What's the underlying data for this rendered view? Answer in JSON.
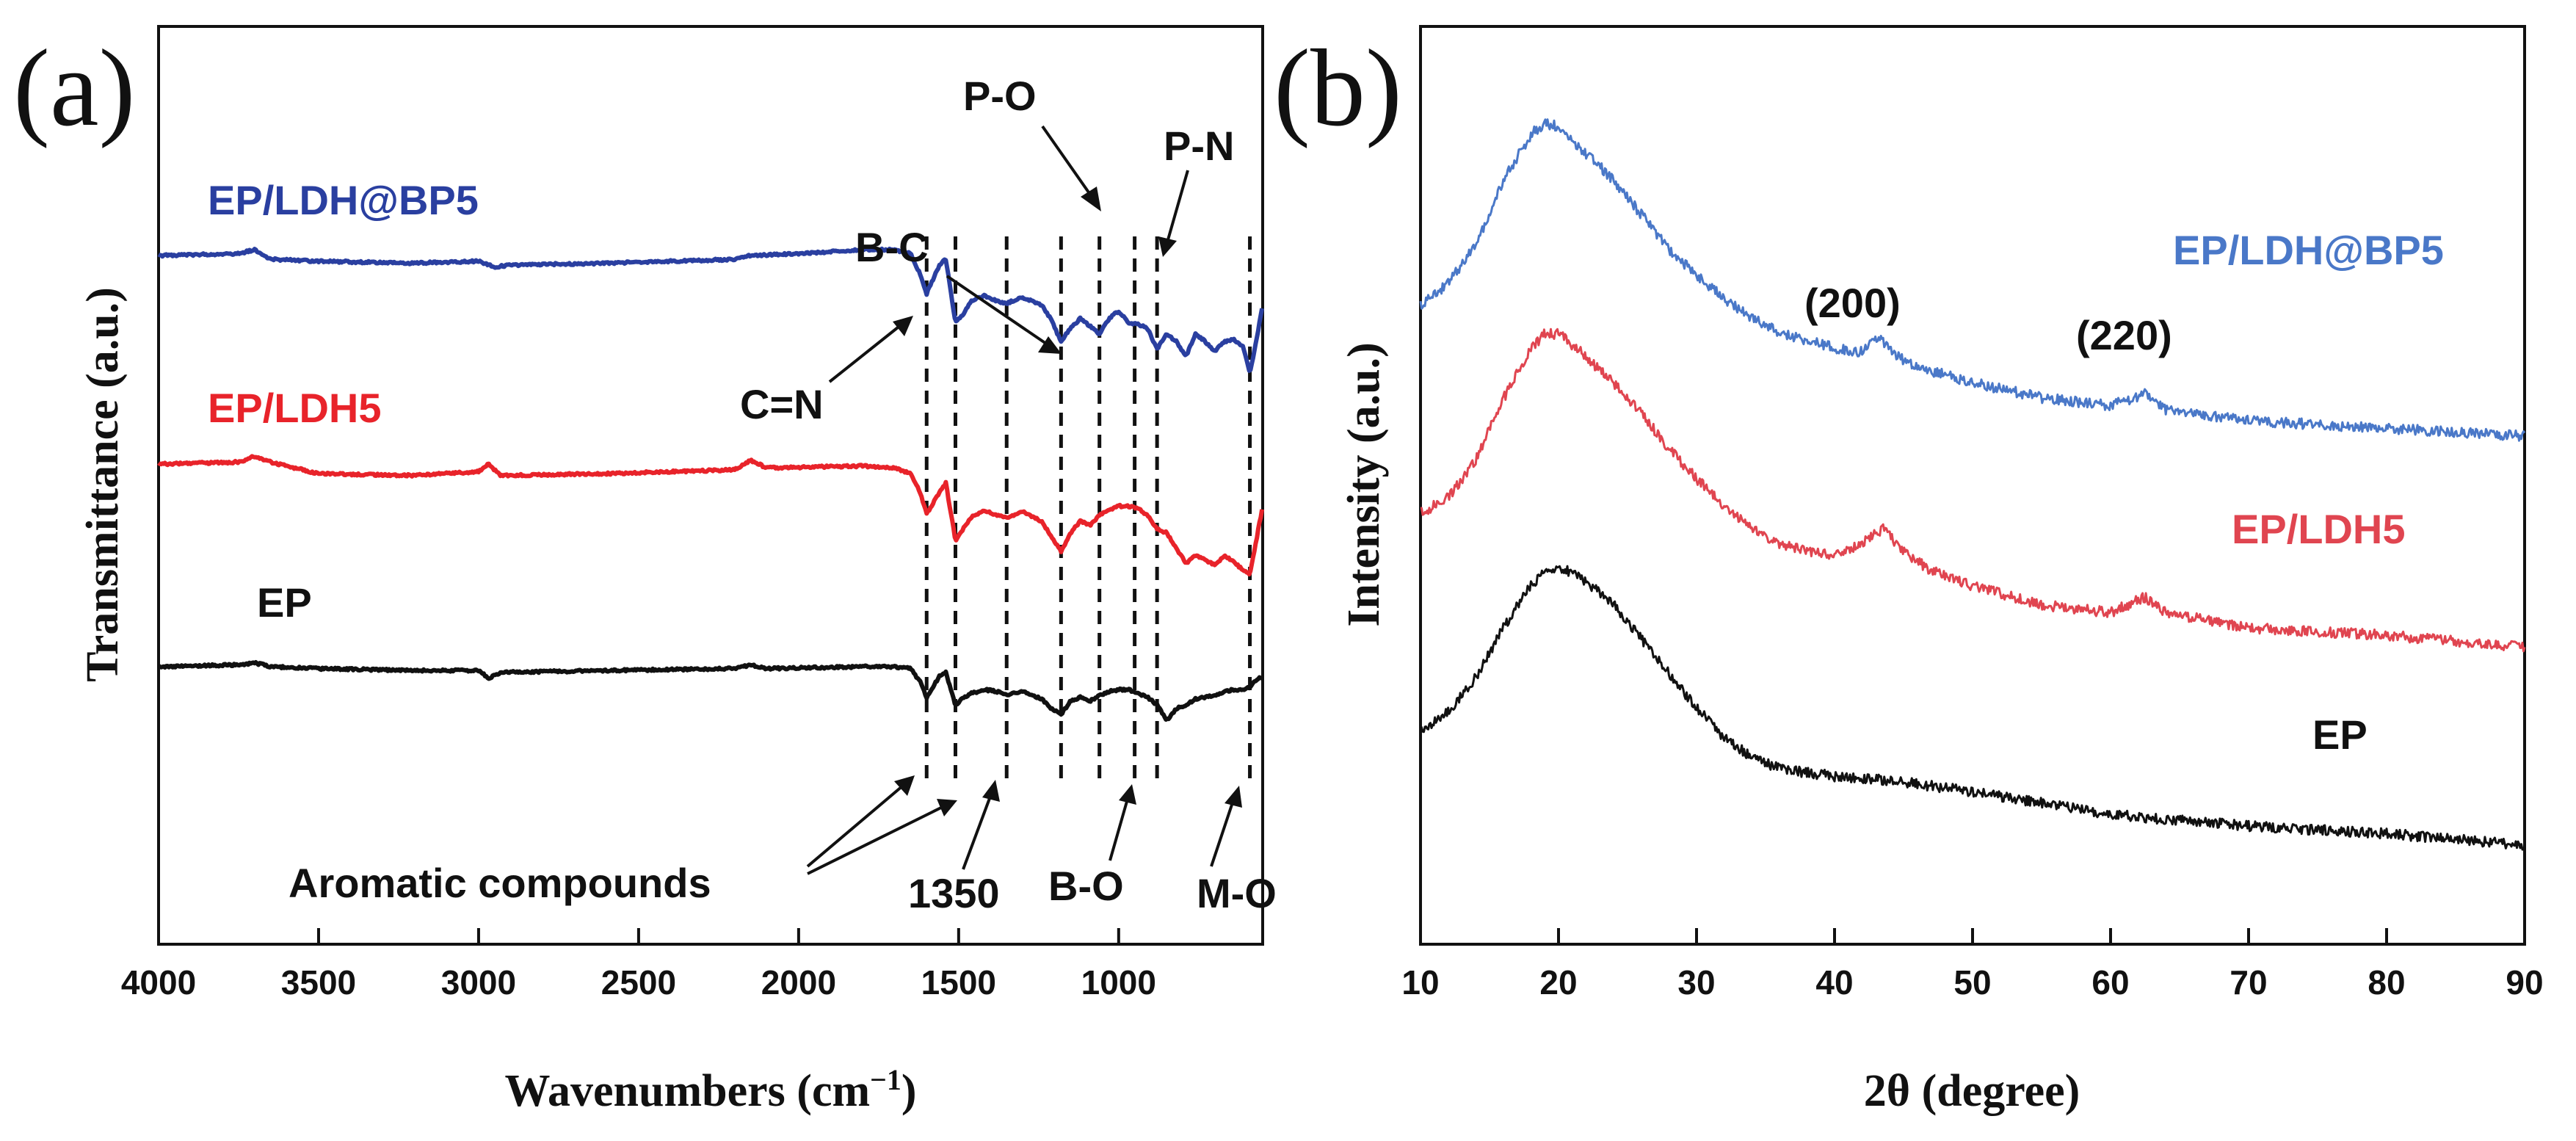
{
  "chart_data": [
    {
      "panel": "(a)",
      "type": "line",
      "xlabel": "Wavenumbers (cm",
      "xlabel_sup": "−1",
      "xlabel_close": ")",
      "ylabel": "Transmittance (a.u.)",
      "xlim": [
        4000,
        550
      ],
      "x_reversed": true,
      "xticks": [
        4000,
        3500,
        3000,
        2500,
        2000,
        1500,
        1000
      ],
      "y_units": "arbitrary (stacked, offset traces)",
      "series": [
        {
          "name": "EP/LDH@BP5",
          "color": "#2A3FA0",
          "offset": 2,
          "points": [
            [
              4000,
              0
            ],
            [
              3750,
              0.01
            ],
            [
              3700,
              0.03
            ],
            [
              3650,
              -0.02
            ],
            [
              3500,
              -0.03
            ],
            [
              3200,
              -0.04
            ],
            [
              3000,
              -0.03
            ],
            [
              2950,
              -0.06
            ],
            [
              2900,
              -0.05
            ],
            [
              2600,
              -0.04
            ],
            [
              2200,
              -0.02
            ],
            [
              2150,
              0
            ],
            [
              2000,
              0.01
            ],
            [
              1800,
              0.03
            ],
            [
              1700,
              0.03
            ],
            [
              1650,
              0.01
            ],
            [
              1620,
              -0.1
            ],
            [
              1600,
              -0.2
            ],
            [
              1560,
              -0.05
            ],
            [
              1540,
              -0.02
            ],
            [
              1510,
              -0.35
            ],
            [
              1490,
              -0.32
            ],
            [
              1460,
              -0.24
            ],
            [
              1420,
              -0.21
            ],
            [
              1380,
              -0.24
            ],
            [
              1350,
              -0.25
            ],
            [
              1300,
              -0.22
            ],
            [
              1240,
              -0.26
            ],
            [
              1210,
              -0.34
            ],
            [
              1180,
              -0.45
            ],
            [
              1150,
              -0.38
            ],
            [
              1120,
              -0.33
            ],
            [
              1090,
              -0.37
            ],
            [
              1060,
              -0.41
            ],
            [
              1030,
              -0.33
            ],
            [
              1000,
              -0.29
            ],
            [
              970,
              -0.35
            ],
            [
              940,
              -0.36
            ],
            [
              910,
              -0.38
            ],
            [
              880,
              -0.49
            ],
            [
              850,
              -0.41
            ],
            [
              820,
              -0.45
            ],
            [
              790,
              -0.53
            ],
            [
              760,
              -0.41
            ],
            [
              730,
              -0.45
            ],
            [
              700,
              -0.5
            ],
            [
              670,
              -0.45
            ],
            [
              640,
              -0.44
            ],
            [
              610,
              -0.48
            ],
            [
              590,
              -0.62
            ],
            [
              570,
              -0.45
            ],
            [
              550,
              -0.26
            ]
          ]
        },
        {
          "name": "EP/LDH5",
          "color": "#E8232A",
          "offset": 1,
          "points": [
            [
              4000,
              0
            ],
            [
              3750,
              0.01
            ],
            [
              3700,
              0.04
            ],
            [
              3650,
              0.01
            ],
            [
              3500,
              -0.05
            ],
            [
              3200,
              -0.06
            ],
            [
              3000,
              -0.04
            ],
            [
              2970,
              0
            ],
            [
              2930,
              -0.06
            ],
            [
              2600,
              -0.05
            ],
            [
              2200,
              -0.03
            ],
            [
              2150,
              0.02
            ],
            [
              2100,
              -0.02
            ],
            [
              1800,
              -0.01
            ],
            [
              1700,
              -0.02
            ],
            [
              1650,
              -0.05
            ],
            [
              1620,
              -0.15
            ],
            [
              1600,
              -0.26
            ],
            [
              1560,
              -0.15
            ],
            [
              1540,
              -0.1
            ],
            [
              1510,
              -0.4
            ],
            [
              1490,
              -0.35
            ],
            [
              1460,
              -0.28
            ],
            [
              1420,
              -0.24
            ],
            [
              1380,
              -0.27
            ],
            [
              1350,
              -0.28
            ],
            [
              1300,
              -0.25
            ],
            [
              1240,
              -0.3
            ],
            [
              1210,
              -0.38
            ],
            [
              1180,
              -0.46
            ],
            [
              1150,
              -0.36
            ],
            [
              1120,
              -0.3
            ],
            [
              1090,
              -0.32
            ],
            [
              1060,
              -0.27
            ],
            [
              1030,
              -0.24
            ],
            [
              1000,
              -0.22
            ],
            [
              970,
              -0.22
            ],
            [
              940,
              -0.23
            ],
            [
              910,
              -0.27
            ],
            [
              880,
              -0.34
            ],
            [
              850,
              -0.36
            ],
            [
              820,
              -0.44
            ],
            [
              790,
              -0.52
            ],
            [
              760,
              -0.48
            ],
            [
              730,
              -0.5
            ],
            [
              700,
              -0.53
            ],
            [
              670,
              -0.48
            ],
            [
              640,
              -0.51
            ],
            [
              610,
              -0.56
            ],
            [
              590,
              -0.58
            ],
            [
              570,
              -0.4
            ],
            [
              550,
              -0.22
            ]
          ]
        },
        {
          "name": "EP",
          "color": "#111111",
          "offset": 0,
          "points": [
            [
              4000,
              0
            ],
            [
              3750,
              0.01
            ],
            [
              3700,
              0.02
            ],
            [
              3650,
              0
            ],
            [
              3500,
              -0.01
            ],
            [
              3200,
              -0.02
            ],
            [
              3000,
              -0.02
            ],
            [
              2970,
              -0.06
            ],
            [
              2930,
              -0.03
            ],
            [
              2600,
              -0.02
            ],
            [
              2200,
              -0.01
            ],
            [
              2150,
              0.01
            ],
            [
              2100,
              -0.01
            ],
            [
              1800,
              0
            ],
            [
              1700,
              0
            ],
            [
              1650,
              -0.01
            ],
            [
              1620,
              -0.08
            ],
            [
              1600,
              -0.16
            ],
            [
              1560,
              -0.05
            ],
            [
              1540,
              -0.03
            ],
            [
              1510,
              -0.2
            ],
            [
              1490,
              -0.17
            ],
            [
              1460,
              -0.14
            ],
            [
              1420,
              -0.12
            ],
            [
              1380,
              -0.13
            ],
            [
              1350,
              -0.15
            ],
            [
              1300,
              -0.13
            ],
            [
              1240,
              -0.17
            ],
            [
              1210,
              -0.22
            ],
            [
              1180,
              -0.25
            ],
            [
              1150,
              -0.18
            ],
            [
              1120,
              -0.16
            ],
            [
              1090,
              -0.18
            ],
            [
              1060,
              -0.15
            ],
            [
              1030,
              -0.13
            ],
            [
              1000,
              -0.12
            ],
            [
              970,
              -0.12
            ],
            [
              940,
              -0.14
            ],
            [
              910,
              -0.16
            ],
            [
              880,
              -0.2
            ],
            [
              850,
              -0.28
            ],
            [
              820,
              -0.22
            ],
            [
              790,
              -0.2
            ],
            [
              760,
              -0.17
            ],
            [
              730,
              -0.16
            ],
            [
              700,
              -0.15
            ],
            [
              670,
              -0.13
            ],
            [
              640,
              -0.12
            ],
            [
              610,
              -0.12
            ],
            [
              590,
              -0.11
            ],
            [
              570,
              -0.07
            ],
            [
              550,
              -0.05
            ]
          ]
        }
      ],
      "reference_lines": [
        1600,
        1510,
        1350,
        1180,
        1060,
        950,
        880,
        590
      ],
      "annotations": [
        {
          "text": "P-O",
          "target": 1060
        },
        {
          "text": "P-N",
          "target": 880
        },
        {
          "text": "B-C",
          "target": 1180
        },
        {
          "text": "C=N",
          "target": 1600
        },
        {
          "text": "Aromatic compounds",
          "targets": [
            1600,
            1510
          ]
        },
        {
          "text": "1350",
          "target": 1350
        },
        {
          "text": "B-O",
          "target": 950
        },
        {
          "text": "M-O",
          "target": 590
        }
      ]
    },
    {
      "panel": "(b)",
      "type": "line",
      "xlabel": "2θ (degree)",
      "ylabel": "Intensity (a.u.)",
      "xlim": [
        10,
        90
      ],
      "xticks": [
        10,
        20,
        30,
        40,
        50,
        60,
        70,
        80,
        90
      ],
      "y_units": "arbitrary (stacked, offset traces)",
      "series": [
        {
          "name": "EP/LDH@BP5",
          "color": "#4A78C8",
          "offset": 2,
          "points": [
            [
              10,
              0.6
            ],
            [
              12,
              0.66
            ],
            [
              14,
              0.76
            ],
            [
              16,
              0.93
            ],
            [
              18,
              1.05
            ],
            [
              19,
              1.08
            ],
            [
              20,
              1.07
            ],
            [
              22,
              1
            ],
            [
              24,
              0.93
            ],
            [
              26,
              0.84
            ],
            [
              28,
              0.75
            ],
            [
              30,
              0.68
            ],
            [
              32,
              0.62
            ],
            [
              34,
              0.57
            ],
            [
              36,
              0.53
            ],
            [
              38,
              0.51
            ],
            [
              40,
              0.49
            ],
            [
              42,
              0.48
            ],
            [
              43.2,
              0.52
            ],
            [
              44.5,
              0.47
            ],
            [
              46,
              0.44
            ],
            [
              50,
              0.4
            ],
            [
              55,
              0.36
            ],
            [
              60,
              0.34
            ],
            [
              62.5,
              0.37
            ],
            [
              64,
              0.33
            ],
            [
              70,
              0.3
            ],
            [
              80,
              0.28
            ],
            [
              90,
              0.26
            ]
          ]
        },
        {
          "name": "EP/LDH5",
          "color": "#E04550",
          "offset": 1,
          "points": [
            [
              10,
              0.6
            ],
            [
              12,
              0.64
            ],
            [
              14,
              0.74
            ],
            [
              16,
              0.9
            ],
            [
              18,
              1.03
            ],
            [
              19,
              1.07
            ],
            [
              20,
              1.07
            ],
            [
              22,
              1.01
            ],
            [
              24,
              0.94
            ],
            [
              26,
              0.86
            ],
            [
              28,
              0.77
            ],
            [
              30,
              0.69
            ],
            [
              32,
              0.62
            ],
            [
              34,
              0.56
            ],
            [
              36,
              0.52
            ],
            [
              38,
              0.5
            ],
            [
              40,
              0.49
            ],
            [
              42,
              0.52
            ],
            [
              43.5,
              0.56
            ],
            [
              45,
              0.5
            ],
            [
              47,
              0.45
            ],
            [
              50,
              0.41
            ],
            [
              55,
              0.36
            ],
            [
              60,
              0.34
            ],
            [
              62.5,
              0.38
            ],
            [
              64,
              0.34
            ],
            [
              70,
              0.3
            ],
            [
              80,
              0.28
            ],
            [
              90,
              0.25
            ]
          ]
        },
        {
          "name": "EP",
          "color": "#111111",
          "offset": 0,
          "points": [
            [
              10,
              0.6
            ],
            [
              12,
              0.65
            ],
            [
              14,
              0.74
            ],
            [
              16,
              0.87
            ],
            [
              18,
              0.98
            ],
            [
              19,
              1.02
            ],
            [
              20,
              1.03
            ],
            [
              22,
              0.99
            ],
            [
              24,
              0.93
            ],
            [
              26,
              0.84
            ],
            [
              28,
              0.75
            ],
            [
              30,
              0.66
            ],
            [
              32,
              0.58
            ],
            [
              34,
              0.53
            ],
            [
              36,
              0.5
            ],
            [
              40,
              0.48
            ],
            [
              44,
              0.47
            ],
            [
              50,
              0.44
            ],
            [
              55,
              0.41
            ],
            [
              60,
              0.38
            ],
            [
              70,
              0.35
            ],
            [
              80,
              0.33
            ],
            [
              90,
              0.3
            ]
          ]
        }
      ],
      "annotations": [
        {
          "text": "(200)",
          "target": 43.2
        },
        {
          "text": "(220)",
          "target": 62.5
        }
      ]
    }
  ]
}
